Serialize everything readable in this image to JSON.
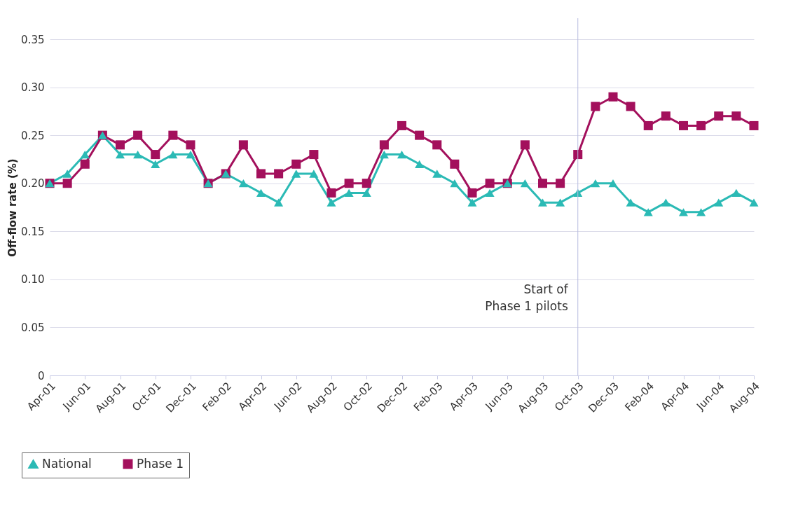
{
  "chart_data": {
    "type": "line",
    "ylabel": "Off-flow rate (%)",
    "categories": [
      "Apr-01",
      null,
      "Jun-01",
      null,
      "Aug-01",
      null,
      "Oct-01",
      null,
      "Dec-01",
      null,
      "Feb-02",
      null,
      "Apr-02",
      null,
      "Jun-02",
      null,
      "Aug-02",
      null,
      "Oct-02",
      null,
      "Dec-02",
      null,
      "Feb-03",
      null,
      "Apr-03",
      null,
      "Jun-03",
      null,
      "Aug-03",
      null,
      "Oct-03",
      null,
      "Dec-03",
      null,
      "Feb-04",
      null,
      "Apr-04",
      null,
      "Jun-04",
      null,
      "Aug-04"
    ],
    "series": [
      {
        "name": "National",
        "color": "#2bbab5",
        "marker": "triangle",
        "values": [
          0.2,
          0.21,
          0.23,
          0.25,
          0.23,
          0.23,
          0.22,
          0.23,
          0.23,
          0.2,
          0.21,
          0.2,
          0.19,
          0.18,
          0.21,
          0.21,
          0.18,
          0.19,
          0.19,
          0.23,
          0.23,
          0.22,
          0.21,
          0.2,
          0.18,
          0.19,
          0.2,
          0.2,
          0.18,
          0.18,
          0.19,
          0.2,
          0.2,
          0.18,
          0.17,
          0.18,
          0.17,
          0.17,
          0.18,
          0.19,
          0.18
        ]
      },
      {
        "name": "Phase 1",
        "color": "#a3105c",
        "marker": "square",
        "values": [
          0.2,
          0.2,
          0.22,
          0.25,
          0.24,
          0.25,
          0.23,
          0.25,
          0.24,
          0.2,
          0.21,
          0.24,
          0.21,
          0.21,
          0.22,
          0.23,
          0.19,
          0.2,
          0.2,
          0.24,
          0.26,
          0.25,
          0.24,
          0.22,
          0.19,
          0.2,
          0.2,
          0.24,
          0.2,
          0.2,
          0.23,
          0.28,
          0.29,
          0.28,
          0.26,
          0.27,
          0.26,
          0.26,
          0.27,
          0.27,
          0.26
        ]
      }
    ],
    "ylim": [
      0,
      0.35
    ],
    "yticks": [
      0,
      {
        "value": 0.05,
        "label": "0.05"
      },
      {
        "value": 0.1,
        "label": "0.10"
      },
      {
        "value": 0.15,
        "label": "0.15"
      },
      {
        "value": 0.2,
        "label": "0.20"
      },
      {
        "value": 0.25,
        "label": "0.25"
      },
      {
        "value": 0.3,
        "label": "0.30"
      },
      {
        "value": 0.35,
        "label": "0.35"
      }
    ],
    "ref_lines": [
      {
        "axis": "x",
        "value": "Oct-03",
        "label": "Start of\nPhase 1 pilots",
        "color": "#b8bde0"
      }
    ],
    "grid": "y",
    "legend": "bottom left",
    "line_style": "solid"
  }
}
